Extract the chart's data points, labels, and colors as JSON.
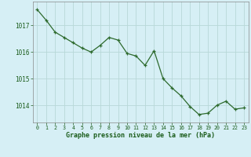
{
  "x": [
    0,
    1,
    2,
    3,
    4,
    5,
    6,
    7,
    8,
    9,
    10,
    11,
    12,
    13,
    14,
    15,
    16,
    17,
    18,
    19,
    20,
    21,
    22,
    23
  ],
  "y": [
    1017.6,
    1017.2,
    1016.75,
    1016.55,
    1016.35,
    1016.15,
    1016.0,
    1016.25,
    1016.55,
    1016.45,
    1015.95,
    1015.85,
    1015.5,
    1016.05,
    1015.0,
    1014.65,
    1014.35,
    1013.95,
    1013.65,
    1013.7,
    1014.0,
    1014.15,
    1013.85,
    1013.9
  ],
  "line_color": "#2d6a2d",
  "marker_color": "#2d6a2d",
  "bg_color": "#d6eff5",
  "grid_color": "#b8d8d8",
  "xlabel": "Graphe pression niveau de la mer (hPa)",
  "xlabel_color": "#1a5c1a",
  "tick_color": "#1a5c1a",
  "ylim": [
    1013.35,
    1017.9
  ],
  "yticks": [
    1014,
    1015,
    1016,
    1017
  ],
  "xlim": [
    -0.5,
    23.5
  ],
  "xticks": [
    0,
    1,
    2,
    3,
    4,
    5,
    6,
    7,
    8,
    9,
    10,
    11,
    12,
    13,
    14,
    15,
    16,
    17,
    18,
    19,
    20,
    21,
    22,
    23
  ]
}
